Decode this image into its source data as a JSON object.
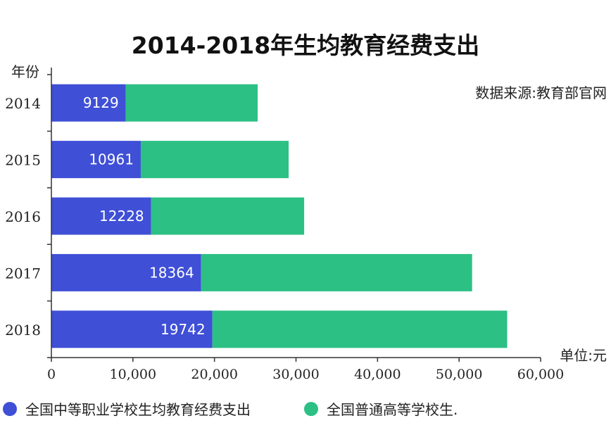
{
  "title": "2014-2018年生均教育经费支出",
  "source_note": "数据来源:教育部官网",
  "unit_label": "单位:元",
  "colors": {
    "series1": "#3f4fd6",
    "series2": "#2cc085",
    "axis": "#333333"
  },
  "chart_data": {
    "type": "bar",
    "orientation": "horizontal",
    "stacked": true,
    "title": "2014-2018年生均教育经费支出",
    "ylabel": "年份",
    "xlabel": "单位:元",
    "categories": [
      "2014",
      "2015",
      "2016",
      "2017",
      "2018"
    ],
    "xlim": [
      0,
      60000
    ],
    "xticks": [
      0,
      10000,
      20000,
      30000,
      40000,
      50000,
      60000
    ],
    "xtick_labels": [
      "0",
      "10,000",
      "20,000",
      "30,000",
      "40,000",
      "50,000",
      "60,000"
    ],
    "grid": false,
    "legend_position": "bottom",
    "series": [
      {
        "name": "全国中等职业学校生均教育经费支出",
        "values": [
          9129,
          10961,
          12228,
          18364,
          19742
        ],
        "labels": [
          "9129",
          "10961",
          "12228",
          "18364",
          "19742"
        ],
        "color": "#3f4fd6"
      },
      {
        "name": "全国普通高等学校生.",
        "values": [
          16171,
          18139,
          18772,
          33236,
          36158
        ],
        "color": "#2cc085"
      }
    ]
  }
}
